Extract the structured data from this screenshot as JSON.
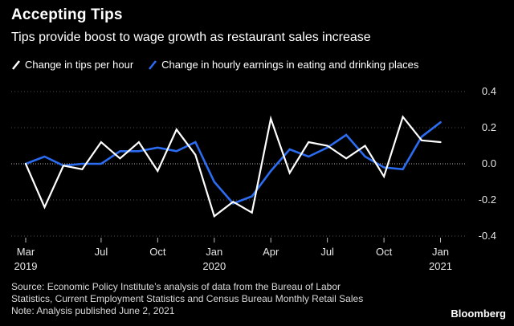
{
  "header": {
    "title": "Accepting Tips",
    "subtitle": "Tips provide boost to wage growth as restaurant sales increase"
  },
  "footer": {
    "source_line1": "Source: Economic Policy Institute’s analysis of data from the Bureau of Labor",
    "source_line2": "Statistics, Current Employment Statistics and Census Bureau Monthly Retail Sales",
    "note": "Note: Analysis published June 2, 2021",
    "brand": "Bloomberg"
  },
  "colors": {
    "background": "#000000",
    "tips": "#ffffff",
    "earnings": "#2b6cf0",
    "grid": "#6a6a6a",
    "axis_text": "#e6e6e6"
  },
  "chart_data": {
    "type": "line",
    "x": [
      "2019-03",
      "2019-04",
      "2019-05",
      "2019-06",
      "2019-07",
      "2019-08",
      "2019-09",
      "2019-10",
      "2019-11",
      "2019-12",
      "2020-01",
      "2020-02",
      "2020-03",
      "2020-04",
      "2020-05",
      "2020-06",
      "2020-07",
      "2020-08",
      "2020-09",
      "2020-10",
      "2020-11",
      "2020-12",
      "2021-01",
      "2021-02"
    ],
    "series": [
      {
        "name": "Change in tips per hour",
        "color": "#ffffff",
        "values": [
          0.0,
          -0.24,
          -0.01,
          -0.03,
          0.12,
          0.03,
          0.12,
          -0.04,
          0.19,
          0.05,
          -0.29,
          -0.21,
          -0.27,
          0.25,
          -0.05,
          0.12,
          0.1,
          0.03,
          0.1,
          -0.07,
          0.26,
          0.13,
          0.12,
          null
        ]
      },
      {
        "name": "Change in hourly earnings in eating and drinking places",
        "color": "#2b6cf0",
        "values": [
          0.0,
          0.04,
          -0.01,
          0.0,
          0.0,
          0.07,
          0.07,
          0.09,
          0.07,
          0.12,
          -0.1,
          -0.22,
          -0.18,
          -0.04,
          0.08,
          0.04,
          0.09,
          0.16,
          0.04,
          -0.02,
          -0.03,
          0.15,
          0.23,
          null
        ]
      }
    ],
    "x_ticks": [
      {
        "label": "Mar",
        "year": "2019",
        "index": 0
      },
      {
        "label": "Jul",
        "year": "",
        "index": 4
      },
      {
        "label": "Oct",
        "year": "",
        "index": 7
      },
      {
        "label": "Jan",
        "year": "2020",
        "index": 10
      },
      {
        "label": "Apr",
        "year": "",
        "index": 13
      },
      {
        "label": "Jul",
        "year": "",
        "index": 16
      },
      {
        "label": "Oct",
        "year": "",
        "index": 19
      },
      {
        "label": "Jan",
        "year": "2021",
        "index": 22
      }
    ],
    "y_ticks": [
      0.4,
      0.2,
      0.0,
      -0.2,
      -0.4
    ],
    "y_tick_labels": [
      "0.4",
      "0.2",
      "0.0",
      "-0.2",
      "-0.4"
    ],
    "ylim": [
      -0.4,
      0.4
    ],
    "xlabel": "",
    "ylabel": "",
    "grid": true,
    "legend": "top-left"
  }
}
